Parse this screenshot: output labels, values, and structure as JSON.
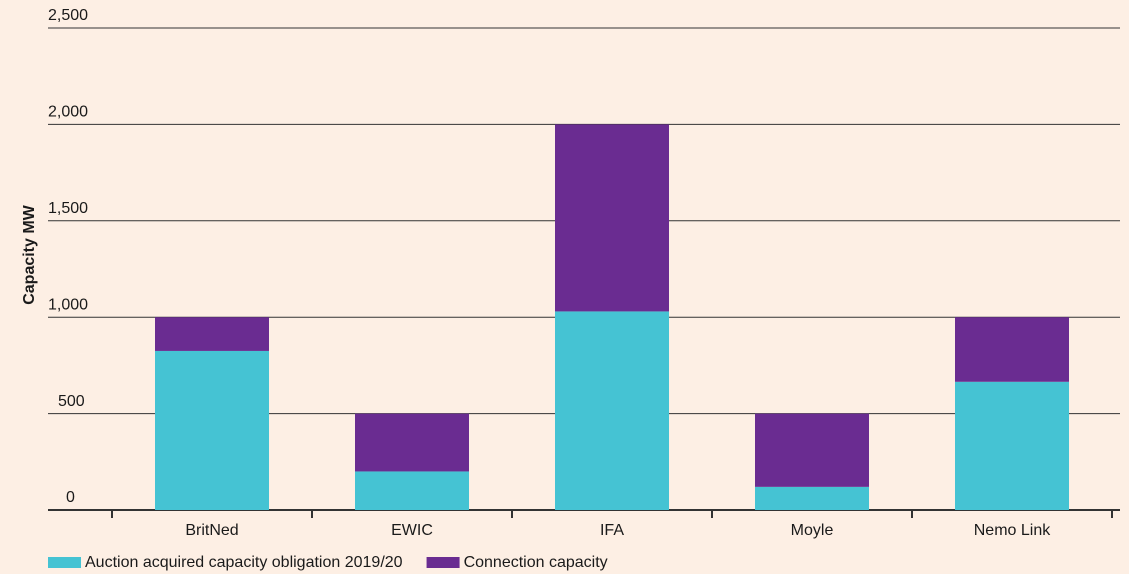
{
  "chart_data": {
    "type": "stacked-bar",
    "y_label": "Capacity MW",
    "categories": [
      "BritNed",
      "EWIC",
      "IFA",
      "Moyle",
      "Nemo Link"
    ],
    "series": [
      {
        "name": "Auction acquired capacity obligation 2019/20",
        "color": "#45c3d3",
        "values": [
          825,
          200,
          1030,
          120,
          665
        ]
      },
      {
        "name": "Connection capacity",
        "color": "#6a2c91",
        "values": [
          175,
          300,
          970,
          380,
          335
        ]
      }
    ],
    "ylim": [
      0,
      2500
    ],
    "yticks": [
      0,
      500,
      {
        "value": 1000,
        "label": "1,000"
      },
      {
        "value": 1500,
        "label": "1,500"
      },
      {
        "value": 2000,
        "label": "2,000"
      },
      {
        "value": 2500,
        "label": "2,500"
      }
    ],
    "grid": true
  }
}
